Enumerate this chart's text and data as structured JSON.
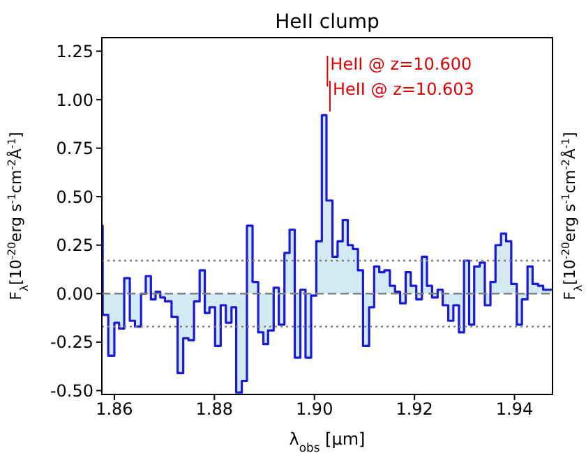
{
  "chart_data": {
    "type": "step",
    "title": "HeII clump",
    "xlabel": "λ$_{obs}$  [μm]",
    "ylabel": "F$_{λ}$[10$^{-20}$erg s$^{-1}$cm$^{-2}$Å$^{-1}$]",
    "y2label": "F$_{λ}$[10$^{-20}$erg s$^{-1}$cm$^{-2}$Å$^{-1}$]",
    "x": [
      1.8575,
      1.85766,
      1.85878,
      1.86,
      1.86094,
      1.86197,
      1.86309,
      1.86412,
      1.86534,
      1.86628,
      1.86731,
      1.86824,
      1.86918,
      1.87012,
      1.87143,
      1.87265,
      1.87377,
      1.8748,
      1.87593,
      1.87705,
      1.87808,
      1.87902,
      1.88014,
      1.88126,
      1.88229,
      1.88342,
      1.88436,
      1.88548,
      1.88651,
      1.88763,
      1.88876,
      1.88979,
      1.89073,
      1.89185,
      1.89288,
      1.894,
      1.89503,
      1.89607,
      1.89719,
      1.89822,
      1.89934,
      1.90037,
      1.90148,
      1.90241,
      1.90361,
      1.90463,
      1.90565,
      1.90667,
      1.90769,
      1.9087,
      1.90972,
      1.91093,
      1.91194,
      1.91296,
      1.91398,
      1.91509,
      1.91611,
      1.91713,
      1.91824,
      1.91926,
      1.92037,
      1.92148,
      1.9225,
      1.92352,
      1.92463,
      1.92565,
      1.92676,
      1.92778,
      1.92889,
      1.92991,
      1.93093,
      1.93194,
      1.93306,
      1.93407,
      1.93519,
      1.9362,
      1.93731,
      1.93833,
      1.93935,
      1.94046,
      1.94148,
      1.9426,
      1.94361,
      1.94472,
      1.94574,
      1.9476
    ],
    "series": [
      {
        "color": "#1a1ad6",
        "values": [
          0.35,
          -0.11,
          -0.32,
          -0.15,
          -0.18,
          0.08,
          -0.14,
          -0.17,
          0.0,
          0.09,
          -0.03,
          0.01,
          -0.02,
          -0.04,
          -0.12,
          -0.41,
          -0.23,
          -0.24,
          -0.04,
          0.12,
          -0.1,
          -0.07,
          -0.27,
          -0.06,
          -0.15,
          -0.07,
          -0.51,
          -0.45,
          0.35,
          0.06,
          -0.2,
          -0.26,
          -0.19,
          0.03,
          -0.16,
          0.21,
          0.33,
          -0.33,
          0.02,
          -0.33,
          -0.01,
          0.27,
          0.92,
          0.48,
          0.19,
          0.27,
          0.38,
          0.25,
          0.23,
          0.12,
          -0.27,
          -0.07,
          0.14,
          0.11,
          0.12,
          0.04,
          0.01,
          -0.05,
          0.11,
          0.04,
          -0.03,
          0.19,
          0.04,
          -0.02,
          0.02,
          -0.06,
          -0.14,
          -0.06,
          -0.2,
          0.17,
          -0.16,
          0.14,
          0.16,
          -0.06,
          0.06,
          0.25,
          0.31,
          0.27,
          0.05,
          -0.16,
          -0.03,
          0.14,
          0.05,
          0.04,
          0.02,
          0.02
        ]
      }
    ],
    "xlim": [
      1.8575,
      1.9476
    ],
    "ylim": [
      -0.52,
      1.32
    ],
    "xticks": [
      1.86,
      1.88,
      {
        "value": 1.9,
        "label": "1.90"
      },
      1.92,
      1.94
    ],
    "yticks": [
      {
        "value": -0.5,
        "label": "-0.50"
      },
      {
        "value": -0.25,
        "label": "-0.25"
      },
      {
        "value": 0,
        "label": "0.00"
      },
      {
        "value": 0.25,
        "label": "0.25"
      },
      {
        "value": 0.5,
        "label": "0.50"
      },
      {
        "value": 0.75,
        "label": "0.75"
      },
      {
        "value": 1,
        "label": "1.00"
      },
      {
        "value": 1.25,
        "label": "1.25"
      }
    ],
    "ref_lines": [
      {
        "axis": "y",
        "value": 0,
        "color": "#808080",
        "line_style": "dashed"
      },
      {
        "axis": "y",
        "value": 0.17,
        "color": "#808080",
        "line_style": "dotted"
      },
      {
        "axis": "y",
        "value": -0.17,
        "color": "#808080",
        "line_style": "dotted"
      },
      {
        "axis": "x",
        "value": 1.9026,
        "color": "#e00000"
      },
      {
        "axis": "x",
        "value": 1.9031,
        "color": "#e00000"
      }
    ],
    "annotations": [
      "HeII @ z=10.600",
      "HeII @ z=10.603"
    ]
  }
}
